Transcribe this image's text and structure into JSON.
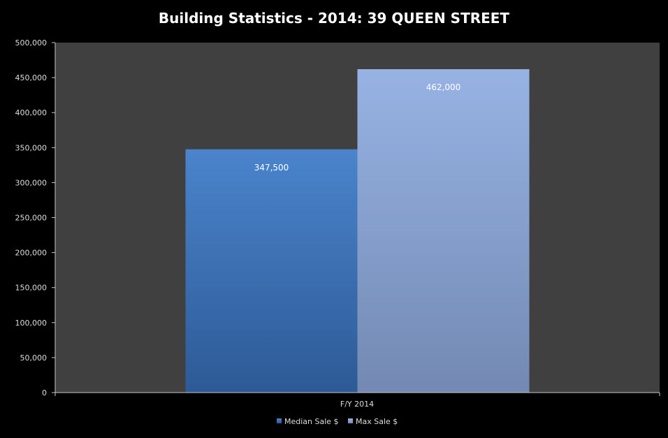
{
  "chart_data": {
    "type": "bar",
    "title": "Building Statistics - 2014: 39 QUEEN STREET",
    "categories": [
      "F/Y 2014"
    ],
    "series": [
      {
        "name": "Median Sale $",
        "values": [
          347500
        ],
        "data_labels": [
          "347,500"
        ]
      },
      {
        "name": "Max Sale $",
        "values": [
          462000
        ],
        "data_labels": [
          "462,000"
        ]
      }
    ],
    "xlabel": "",
    "ylabel": "",
    "ylim": [
      0,
      500000
    ],
    "yticks": [
      0,
      50000,
      100000,
      150000,
      200000,
      250000,
      300000,
      350000,
      400000,
      450000,
      500000
    ],
    "ytick_labels": [
      "0",
      "50,000",
      "100,000",
      "150,000",
      "200,000",
      "250,000",
      "300,000",
      "350,000",
      "400,000",
      "450,000",
      "500,000"
    ],
    "grid": false,
    "legend": "bottom",
    "colors": {
      "page_background": "#000000",
      "plot_background": "#404040",
      "text": "#ffffff",
      "tick_text": "#dcdcdc",
      "axis_line": "#c8c8c8",
      "median_top": "#4a84cc",
      "median_bottom": "#2d5a96",
      "max_top": "#97b3e3",
      "max_bottom": "#7389b3"
    }
  }
}
